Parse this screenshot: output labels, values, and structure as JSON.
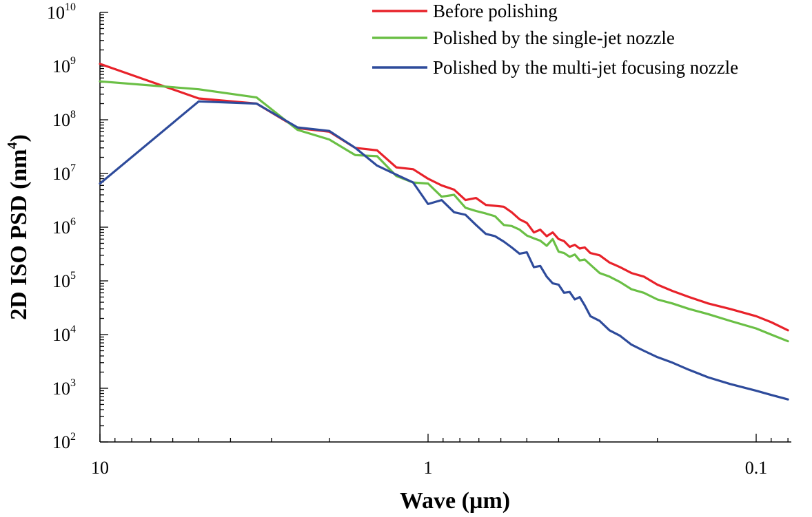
{
  "chart_data": {
    "type": "line",
    "x_scale": "log",
    "y_scale": "log",
    "x_reversed": true,
    "xlabel": "Wave (µm)",
    "ylabel": "2D ISO PSD (nm",
    "ylabel_sup": "4",
    "ylabel_close": ")",
    "xlim": [
      10,
      0.077
    ],
    "ylim": [
      100,
      10000000000
    ],
    "x_ticks": [
      {
        "value": 10,
        "label": "10"
      },
      {
        "value": 1,
        "label": "1"
      },
      {
        "value": 0.1,
        "label": "0.1"
      }
    ],
    "y_ticks": [
      {
        "value": 100,
        "base": "10",
        "exp": "2"
      },
      {
        "value": 1000,
        "base": "10",
        "exp": "3"
      },
      {
        "value": 10000,
        "base": "10",
        "exp": "4"
      },
      {
        "value": 100000,
        "base": "10",
        "exp": "5"
      },
      {
        "value": 1000000,
        "base": "10",
        "exp": "6"
      },
      {
        "value": 10000000,
        "base": "10",
        "exp": "7"
      },
      {
        "value": 100000000,
        "base": "10",
        "exp": "8"
      },
      {
        "value": 1000000000,
        "base": "10",
        "exp": "9"
      },
      {
        "value": 10000000000,
        "base": "10",
        "exp": "10"
      }
    ],
    "legend_position": "top-right",
    "series": [
      {
        "name": "Before polishing",
        "color": "#e8222a",
        "x": [
          10,
          5,
          3.33,
          2.5,
          2,
          1.667,
          1.43,
          1.25,
          1.11,
          1.0,
          0.909,
          0.833,
          0.769,
          0.714,
          0.667,
          0.625,
          0.588,
          0.556,
          0.526,
          0.5,
          0.476,
          0.455,
          0.435,
          0.417,
          0.4,
          0.385,
          0.37,
          0.357,
          0.345,
          0.333,
          0.32,
          0.3,
          0.28,
          0.26,
          0.24,
          0.22,
          0.2,
          0.18,
          0.16,
          0.14,
          0.12,
          0.1,
          0.09,
          0.08
        ],
        "y": [
          1100000000,
          250000000,
          200000000,
          70000000,
          60000000,
          30000000,
          27000000,
          13000000,
          12000000,
          8000000,
          6000000,
          5000000,
          3200000,
          3500000,
          2600000,
          2500000,
          2400000,
          1900000,
          1400000,
          1200000,
          800000,
          900000,
          680000,
          800000,
          600000,
          550000,
          430000,
          470000,
          400000,
          420000,
          330000,
          300000,
          220000,
          180000,
          140000,
          120000,
          85000,
          65000,
          50000,
          38000,
          30000,
          22000,
          17000,
          12000
        ]
      },
      {
        "name": "Polished by the single-jet nozzle",
        "color": "#6abf45",
        "x": [
          10,
          5,
          3.33,
          2.5,
          2,
          1.667,
          1.43,
          1.25,
          1.11,
          1.0,
          0.909,
          0.833,
          0.769,
          0.714,
          0.667,
          0.625,
          0.588,
          0.556,
          0.526,
          0.5,
          0.476,
          0.455,
          0.435,
          0.417,
          0.4,
          0.385,
          0.37,
          0.357,
          0.345,
          0.333,
          0.32,
          0.3,
          0.28,
          0.26,
          0.24,
          0.22,
          0.2,
          0.18,
          0.16,
          0.14,
          0.12,
          0.1,
          0.09,
          0.08
        ],
        "y": [
          520000000,
          370000000,
          260000000,
          65000000,
          43000000,
          22000000,
          21000000,
          9000000,
          6800000,
          6500000,
          3700000,
          4000000,
          2300000,
          2000000,
          1800000,
          1600000,
          1100000,
          1050000,
          900000,
          700000,
          620000,
          560000,
          450000,
          600000,
          350000,
          330000,
          280000,
          310000,
          240000,
          250000,
          200000,
          140000,
          120000,
          95000,
          70000,
          60000,
          45000,
          38000,
          30000,
          24000,
          18000,
          13000,
          10000,
          7500
        ]
      },
      {
        "name": "Polished by the multi-jet focusing nozzle",
        "color": "#2e4b9b",
        "x": [
          10,
          5,
          3.33,
          2.5,
          2,
          1.667,
          1.43,
          1.25,
          1.11,
          1.0,
          0.909,
          0.833,
          0.769,
          0.714,
          0.667,
          0.625,
          0.588,
          0.556,
          0.526,
          0.5,
          0.476,
          0.455,
          0.435,
          0.417,
          0.4,
          0.385,
          0.37,
          0.357,
          0.345,
          0.333,
          0.32,
          0.3,
          0.28,
          0.26,
          0.24,
          0.22,
          0.2,
          0.18,
          0.16,
          0.14,
          0.12,
          0.1,
          0.09,
          0.08
        ],
        "y": [
          6500000,
          220000000,
          200000000,
          72000000,
          62000000,
          30000000,
          14000000,
          9500000,
          6800000,
          2700000,
          3200000,
          1900000,
          1700000,
          1100000,
          750000,
          680000,
          540000,
          420000,
          320000,
          340000,
          180000,
          190000,
          120000,
          90000,
          85000,
          60000,
          62000,
          45000,
          50000,
          35000,
          22000,
          18000,
          12000,
          9500,
          6500,
          5000,
          3800,
          3000,
          2200,
          1600,
          1200,
          900,
          750,
          620
        ]
      }
    ]
  }
}
